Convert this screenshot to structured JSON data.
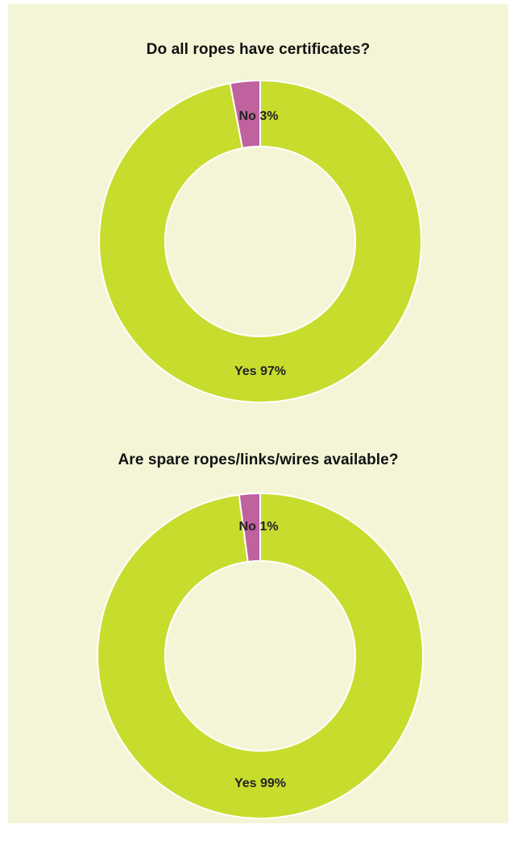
{
  "colors": {
    "background": "#f3f5d6",
    "yes": "#c8dc2e",
    "no": "#c0629e",
    "stroke": "#ffffff"
  },
  "chart_data": [
    {
      "type": "pie",
      "title": "Do all ropes have certificates?",
      "categories": [
        "No",
        "Yes"
      ],
      "values": [
        3,
        97
      ],
      "labels": [
        "No 3%",
        "Yes 97%"
      ]
    },
    {
      "type": "pie",
      "title": "Are spare ropes/links/wires available?",
      "categories": [
        "No",
        "Yes"
      ],
      "values": [
        1,
        99
      ],
      "labels": [
        "No 1%",
        "Yes 99%"
      ]
    }
  ]
}
